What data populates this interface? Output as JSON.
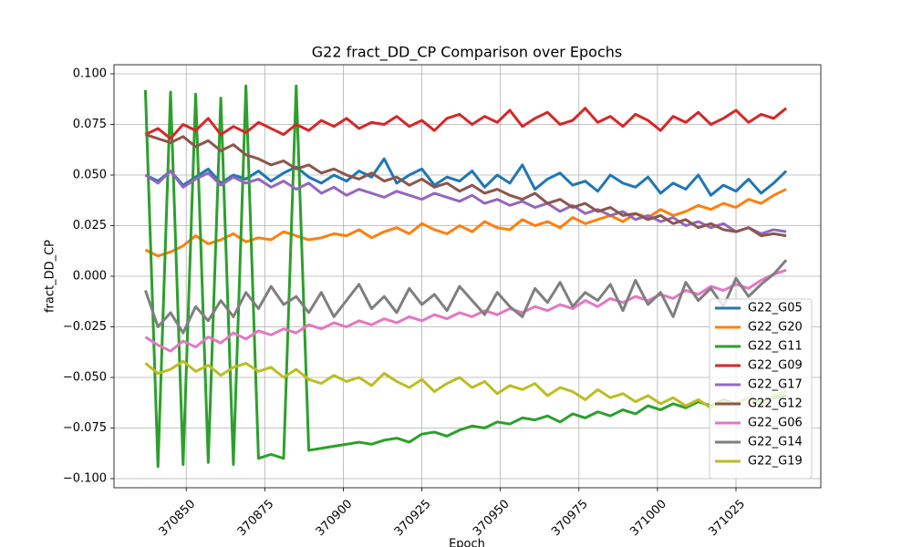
{
  "chart_data": {
    "type": "line",
    "title": "G22 fract_DD_CP Comparison over Epochs",
    "x_label": "Epoch",
    "y_label": "fract_DD_CP",
    "x": [
      370837,
      370841,
      370845,
      370849,
      370853,
      370857,
      370861,
      370865,
      370869,
      370873,
      370877,
      370881,
      370885,
      370889,
      370893,
      370897,
      370901,
      370905,
      370909,
      370913,
      370917,
      370921,
      370925,
      370929,
      370933,
      370937,
      370941,
      370945,
      370949,
      370953,
      370957,
      370961,
      370965,
      370969,
      370973,
      370977,
      370981,
      370985,
      370989,
      370993,
      370997,
      371001,
      371005,
      371009,
      371013,
      371017,
      371021,
      371025,
      371029,
      371033,
      371037,
      371041
    ],
    "xlim": [
      370827,
      371052
    ],
    "xticks": [
      370850,
      370875,
      370900,
      370925,
      370950,
      370975,
      371000,
      371025
    ],
    "ylim": [
      -0.1045,
      0.1045
    ],
    "yticks": [
      {
        "value": -0.1,
        "label": "−0.100"
      },
      {
        "value": -0.075,
        "label": "−0.075"
      },
      {
        "value": -0.05,
        "label": "−0.050"
      },
      {
        "value": -0.025,
        "label": "−0.025"
      },
      {
        "value": 0,
        "label": "0.000"
      },
      {
        "value": 0.025,
        "label": "0.025"
      },
      {
        "value": 0.05,
        "label": "0.050"
      },
      {
        "value": 0.075,
        "label": "0.075"
      },
      {
        "value": 0.1,
        "label": "0.100"
      }
    ],
    "grid": true,
    "legend": "lower right",
    "series": [
      {
        "name": "G22_G05",
        "color": "#1f77b4",
        "values": [
          0.05,
          0.047,
          0.052,
          0.045,
          0.049,
          0.053,
          0.046,
          0.05,
          0.048,
          0.052,
          0.047,
          0.051,
          0.054,
          0.049,
          0.046,
          0.05,
          0.047,
          0.052,
          0.049,
          0.058,
          0.046,
          0.05,
          0.053,
          0.045,
          0.049,
          0.047,
          0.052,
          0.044,
          0.05,
          0.046,
          0.055,
          0.043,
          0.048,
          0.051,
          0.045,
          0.047,
          0.042,
          0.05,
          0.046,
          0.044,
          0.049,
          0.041,
          0.046,
          0.043,
          0.05,
          0.04,
          0.045,
          0.042,
          0.048,
          0.041,
          0.046,
          0.052
        ]
      },
      {
        "name": "G22_G20",
        "color": "#ff7f0e",
        "values": [
          0.013,
          0.01,
          0.012,
          0.015,
          0.02,
          0.016,
          0.018,
          0.021,
          0.017,
          0.019,
          0.018,
          0.022,
          0.02,
          0.018,
          0.019,
          0.021,
          0.02,
          0.023,
          0.019,
          0.022,
          0.024,
          0.021,
          0.026,
          0.023,
          0.021,
          0.025,
          0.022,
          0.027,
          0.024,
          0.023,
          0.028,
          0.025,
          0.027,
          0.024,
          0.029,
          0.026,
          0.028,
          0.03,
          0.027,
          0.031,
          0.029,
          0.033,
          0.03,
          0.032,
          0.035,
          0.033,
          0.036,
          0.034,
          0.038,
          0.036,
          0.04,
          0.043
        ]
      },
      {
        "name": "G22_G11",
        "color": "#2ca02c",
        "values": [
          0.092,
          -0.094,
          0.091,
          -0.093,
          0.09,
          -0.092,
          0.088,
          -0.093,
          0.094,
          -0.09,
          -0.088,
          -0.09,
          0.094,
          -0.086,
          -0.085,
          -0.084,
          -0.083,
          -0.082,
          -0.083,
          -0.081,
          -0.08,
          -0.082,
          -0.078,
          -0.077,
          -0.079,
          -0.076,
          -0.074,
          -0.075,
          -0.072,
          -0.073,
          -0.07,
          -0.071,
          -0.069,
          -0.072,
          -0.068,
          -0.07,
          -0.067,
          -0.069,
          -0.066,
          -0.068,
          -0.064,
          -0.066,
          -0.063,
          -0.065,
          -0.062,
          -0.064,
          -0.061,
          -0.063,
          -0.06,
          -0.062,
          -0.06,
          -0.059
        ]
      },
      {
        "name": "G22_G09",
        "color": "#d62728",
        "values": [
          0.07,
          0.073,
          0.068,
          0.075,
          0.072,
          0.078,
          0.07,
          0.074,
          0.071,
          0.076,
          0.073,
          0.07,
          0.075,
          0.072,
          0.077,
          0.074,
          0.078,
          0.073,
          0.076,
          0.075,
          0.079,
          0.074,
          0.077,
          0.072,
          0.078,
          0.08,
          0.075,
          0.079,
          0.076,
          0.082,
          0.074,
          0.078,
          0.081,
          0.075,
          0.077,
          0.083,
          0.076,
          0.079,
          0.074,
          0.08,
          0.077,
          0.072,
          0.079,
          0.076,
          0.081,
          0.075,
          0.078,
          0.082,
          0.076,
          0.08,
          0.078,
          0.083
        ]
      },
      {
        "name": "G22_G17",
        "color": "#9467bd",
        "values": [
          0.05,
          0.046,
          0.052,
          0.044,
          0.048,
          0.051,
          0.045,
          0.049,
          0.046,
          0.048,
          0.044,
          0.047,
          0.043,
          0.046,
          0.041,
          0.044,
          0.04,
          0.043,
          0.041,
          0.039,
          0.042,
          0.04,
          0.038,
          0.041,
          0.039,
          0.037,
          0.04,
          0.036,
          0.038,
          0.035,
          0.037,
          0.034,
          0.036,
          0.032,
          0.035,
          0.031,
          0.033,
          0.03,
          0.032,
          0.028,
          0.03,
          0.027,
          0.029,
          0.025,
          0.027,
          0.024,
          0.026,
          0.022,
          0.024,
          0.021,
          0.023,
          0.022
        ]
      },
      {
        "name": "G22_G12",
        "color": "#8c564b",
        "values": [
          0.07,
          0.068,
          0.066,
          0.069,
          0.064,
          0.067,
          0.062,
          0.065,
          0.06,
          0.058,
          0.055,
          0.057,
          0.053,
          0.055,
          0.051,
          0.053,
          0.05,
          0.048,
          0.051,
          0.047,
          0.049,
          0.045,
          0.048,
          0.044,
          0.046,
          0.042,
          0.045,
          0.041,
          0.043,
          0.04,
          0.038,
          0.041,
          0.036,
          0.038,
          0.034,
          0.036,
          0.032,
          0.034,
          0.03,
          0.031,
          0.028,
          0.03,
          0.026,
          0.028,
          0.024,
          0.026,
          0.023,
          0.022,
          0.024,
          0.02,
          0.021,
          0.02
        ]
      },
      {
        "name": "G22_G06",
        "color": "#e377c2",
        "values": [
          -0.03,
          -0.034,
          -0.037,
          -0.032,
          -0.035,
          -0.03,
          -0.033,
          -0.028,
          -0.031,
          -0.027,
          -0.029,
          -0.026,
          -0.028,
          -0.024,
          -0.026,
          -0.023,
          -0.025,
          -0.022,
          -0.024,
          -0.021,
          -0.023,
          -0.02,
          -0.022,
          -0.019,
          -0.021,
          -0.018,
          -0.02,
          -0.017,
          -0.019,
          -0.016,
          -0.018,
          -0.015,
          -0.017,
          -0.014,
          -0.016,
          -0.012,
          -0.015,
          -0.011,
          -0.013,
          -0.01,
          -0.012,
          -0.009,
          -0.011,
          -0.007,
          -0.009,
          -0.005,
          -0.007,
          -0.004,
          -0.006,
          -0.002,
          0.001,
          0.003
        ]
      },
      {
        "name": "G22_G14",
        "color": "#7f7f7f",
        "values": [
          -0.007,
          -0.025,
          -0.018,
          -0.028,
          -0.015,
          -0.022,
          -0.012,
          -0.02,
          -0.008,
          -0.016,
          -0.005,
          -0.014,
          -0.01,
          -0.018,
          -0.008,
          -0.02,
          -0.012,
          -0.004,
          -0.016,
          -0.01,
          -0.018,
          -0.006,
          -0.014,
          -0.009,
          -0.017,
          -0.005,
          -0.012,
          -0.019,
          -0.008,
          -0.015,
          -0.02,
          -0.006,
          -0.013,
          -0.003,
          -0.015,
          -0.008,
          -0.012,
          -0.004,
          -0.017,
          -0.002,
          -0.014,
          -0.008,
          -0.02,
          -0.003,
          -0.012,
          -0.006,
          -0.015,
          -0.001,
          -0.01,
          -0.004,
          0.001,
          0.008
        ]
      },
      {
        "name": "G22_G19",
        "color": "#bcbd22",
        "values": [
          -0.043,
          -0.048,
          -0.046,
          -0.042,
          -0.047,
          -0.044,
          -0.049,
          -0.045,
          -0.043,
          -0.047,
          -0.045,
          -0.05,
          -0.046,
          -0.051,
          -0.053,
          -0.049,
          -0.052,
          -0.05,
          -0.054,
          -0.048,
          -0.052,
          -0.055,
          -0.051,
          -0.057,
          -0.053,
          -0.05,
          -0.055,
          -0.052,
          -0.058,
          -0.054,
          -0.056,
          -0.053,
          -0.059,
          -0.055,
          -0.057,
          -0.061,
          -0.056,
          -0.06,
          -0.058,
          -0.062,
          -0.059,
          -0.063,
          -0.06,
          -0.064,
          -0.061,
          -0.065,
          -0.062,
          -0.063,
          -0.06,
          -0.064,
          -0.059,
          -0.057
        ]
      }
    ]
  }
}
